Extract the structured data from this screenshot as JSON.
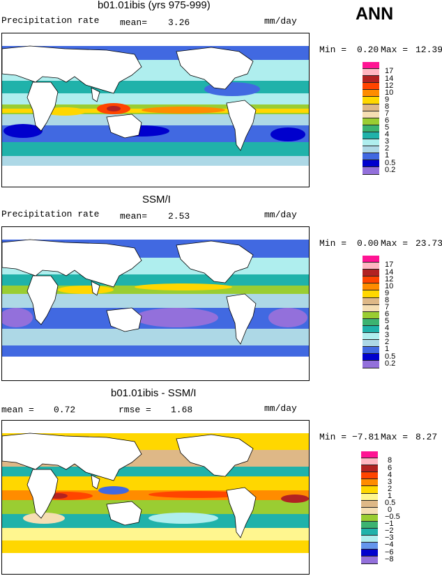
{
  "season": "ANN",
  "units": "mm/day",
  "panels": [
    {
      "title": "b01.01ibis (yrs 975-999)",
      "left_label": "Precipitation rate",
      "mean_label": "mean=",
      "mean_value": "3.26",
      "units": "mm/day",
      "min_label": "Min =",
      "min_value": "0.20",
      "max_label": "Max =",
      "max_value": "12.39"
    },
    {
      "title": "SSM/I",
      "left_label": "Precipitation rate",
      "mean_label": "mean=",
      "mean_value": "2.53",
      "units": "mm/day",
      "min_label": "Min =",
      "min_value": "0.00",
      "max_label": "Max =",
      "max_value": "23.73"
    },
    {
      "title": "b01.01ibis - SSM/I",
      "mean_label": "mean =",
      "mean_value": "0.72",
      "rmse_label": "rmse =",
      "rmse_value": "1.68",
      "units": "mm/day",
      "min_label": "Min =",
      "min_value": "−7.81",
      "max_label": "Max =",
      "max_value": "8.27"
    }
  ],
  "abs_legend": {
    "levels": [
      "17",
      "14",
      "12",
      "10",
      "9",
      "8",
      "7",
      "6",
      "5",
      "4",
      "3",
      "2",
      "1",
      "0.5",
      "0.2"
    ],
    "colors": [
      "#ff1493",
      "#ffb6c1",
      "#b22222",
      "#ff4500",
      "#ff8c00",
      "#ffd700",
      "#deb887",
      "#f5deb3",
      "#9acd32",
      "#3cb371",
      "#20b2aa",
      "#afeeee",
      "#add8e6",
      "#4169e1",
      "#0000cd",
      "#9370db"
    ]
  },
  "diff_legend": {
    "levels": [
      "8",
      "6",
      "4",
      "3",
      "2",
      "1",
      "0.5",
      "0",
      "−0.5",
      "−1",
      "−2",
      "−3",
      "−4",
      "−6",
      "−8"
    ],
    "colors": [
      "#ff1493",
      "#ffb6c1",
      "#b22222",
      "#ff4500",
      "#ff8c00",
      "#ffd700",
      "#fff68f",
      "#deb887",
      "#f5deb3",
      "#9acd32",
      "#3cb371",
      "#20b2aa",
      "#afeeee",
      "#6495ed",
      "#0000cd",
      "#9370db"
    ]
  }
}
